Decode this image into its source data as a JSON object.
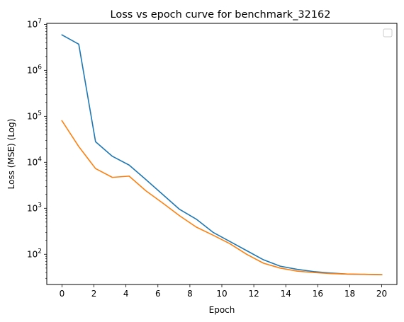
{
  "chart_data": {
    "type": "line",
    "title": "Loss vs epoch curve for benchmark_32162",
    "xlabel": "Epoch",
    "ylabel": "Loss (MSE) (Log)",
    "xlim": [
      -0.95,
      20.95
    ],
    "ylim": [
      22,
      10500000
    ],
    "yscale": "log",
    "xticks": [
      0,
      2,
      4,
      6,
      8,
      10,
      12,
      14,
      16,
      18,
      20
    ],
    "yticks": [
      {
        "value": 100,
        "base": "10",
        "exp": "2"
      },
      {
        "value": 1000,
        "base": "10",
        "exp": "3"
      },
      {
        "value": 10000,
        "base": "10",
        "exp": "4"
      },
      {
        "value": 100000,
        "base": "10",
        "exp": "5"
      },
      {
        "value": 1000000,
        "base": "10",
        "exp": "6"
      },
      {
        "value": 10000000,
        "base": "10",
        "exp": "7"
      }
    ],
    "grid": false,
    "legend": {
      "position": "top-right",
      "entries": []
    },
    "series": [
      {
        "color": "#1f77b4",
        "x": [
          0,
          1.05,
          2.1,
          3.15,
          4.2,
          5.25,
          6.3,
          7.35,
          8.4,
          9.45,
          10.5,
          11.55,
          12.6,
          13.65,
          14.7,
          15.75,
          16.8,
          17.85,
          18.9,
          20
        ],
        "y": [
          5900000,
          3700000,
          28000,
          13500,
          8700,
          4200,
          2000,
          950,
          580,
          300,
          190,
          120,
          76,
          55,
          47,
          42,
          39,
          37,
          36.5,
          36
        ]
      },
      {
        "color": "#ff7f0e",
        "x": [
          0,
          1.05,
          2.1,
          3.15,
          4.2,
          5.25,
          6.3,
          7.35,
          8.4,
          9.45,
          10.5,
          11.55,
          12.6,
          13.65,
          14.7,
          15.75,
          16.8,
          17.85,
          18.9,
          20
        ],
        "y": [
          80000,
          22000,
          7300,
          4700,
          5000,
          2400,
          1300,
          690,
          390,
          260,
          170,
          100,
          64,
          50,
          43,
          40,
          38,
          37,
          36.5,
          36
        ]
      }
    ]
  }
}
